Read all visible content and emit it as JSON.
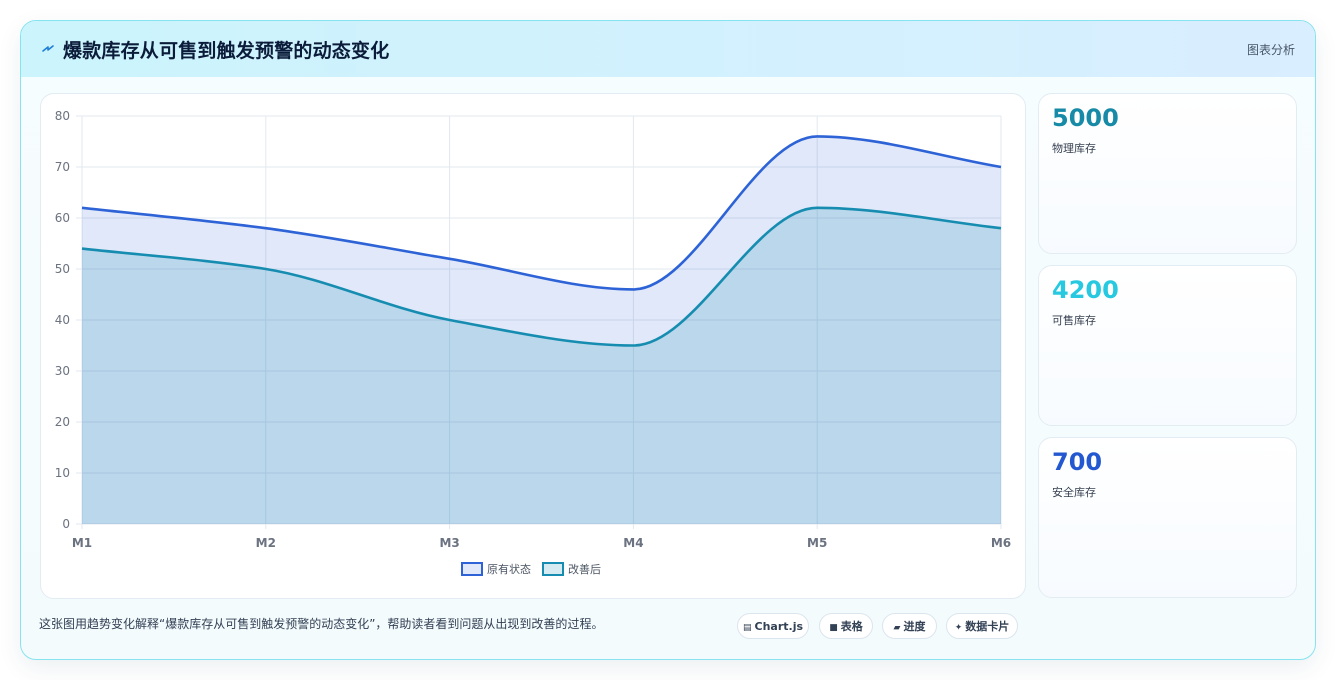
{
  "title": "爆款库存从可售到触发预警的动态变化",
  "header_link": "图表分析",
  "colors": {
    "series_original": "#2d63d6",
    "series_improved": "#168db0",
    "stat_physical": "#168aa6",
    "stat_sellable": "#27c9e0",
    "stat_safety": "#2358d0"
  },
  "stats": [
    {
      "value": "5000",
      "label": "物理库存"
    },
    {
      "value": "4200",
      "label": "可售库存"
    },
    {
      "value": "700",
      "label": "安全库存"
    }
  ],
  "footer": {
    "text": "这张图用趋势变化解释“爆款库存从可售到触发预警的动态变化”，帮助读者看到问题从出现到改善的过程。",
    "pills": [
      {
        "icon": "chart-icon",
        "label": "Chart.js"
      },
      {
        "icon": "table-icon",
        "label": "表格"
      },
      {
        "icon": "progress-icon",
        "label": "进度"
      },
      {
        "icon": "sparkle-icon",
        "label": "数据卡片"
      }
    ]
  },
  "chart_data": {
    "type": "area",
    "categories": [
      "M1",
      "M2",
      "M3",
      "M4",
      "M5",
      "M6"
    ],
    "series": [
      {
        "name": "原有状态",
        "values": [
          62,
          58,
          52,
          46,
          76,
          70
        ]
      },
      {
        "name": "改善后",
        "values": [
          54,
          50,
          40,
          35,
          62,
          58
        ]
      }
    ],
    "ylim": [
      0,
      80
    ],
    "yticks": [
      "0",
      "10",
      "20",
      "30",
      "40",
      "50",
      "60",
      "70",
      "80"
    ],
    "grid": true,
    "legend": "bottom-center"
  }
}
